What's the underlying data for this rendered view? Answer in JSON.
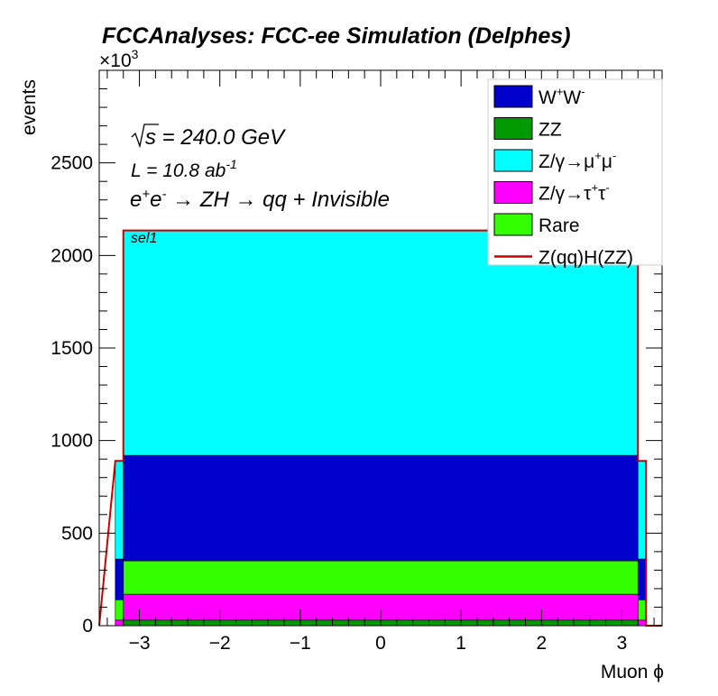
{
  "chart_data": {
    "type": "bar",
    "stacked": true,
    "title": "FCCAnalyses: FCC-ee Simulation (Delphes)",
    "ylabel": "events",
    "xlabel": "Muon ϕ",
    "y_multiplier": "×10",
    "y_multiplier_exp": "3",
    "xlim": [
      -3.5,
      3.5
    ],
    "ylim": [
      0,
      3000
    ],
    "x_ticks": [
      "−3",
      "−2",
      "−1",
      "0",
      "1",
      "2",
      "3"
    ],
    "x_tick_values": [
      -3,
      -2,
      -1,
      0,
      1,
      2,
      3
    ],
    "y_ticks": [
      "0",
      "500",
      "1000",
      "1500",
      "2000",
      "2500"
    ],
    "y_tick_values": [
      0,
      500,
      1000,
      1500,
      2000,
      2500
    ],
    "bins": [
      "[-3.3,-3.2]",
      "[-3.2,3.2]",
      "[3.2,3.3]"
    ],
    "bin_edges": [
      -3.3,
      -3.2,
      3.2,
      3.3
    ],
    "series": [
      {
        "name": "ZZ",
        "sup": "",
        "color": "#009900",
        "values": [
          0,
          30,
          0
        ]
      },
      {
        "name": "Z/γ→τ",
        "sup": "+",
        "name2": "τ",
        "sup2": "-",
        "color": "#ff00ff",
        "values": [
          30,
          140,
          30
        ]
      },
      {
        "name": "Rare",
        "sup": "",
        "color": "#33ff00",
        "values": [
          110,
          180,
          110
        ]
      },
      {
        "name": "W",
        "sup": "+",
        "name2": "W",
        "sup2": "-",
        "color": "#0000cc",
        "values": [
          220,
          570,
          220
        ]
      },
      {
        "name": "Z/γ→μ",
        "sup": "+",
        "name2": "μ",
        "sup2": "-",
        "color": "#00ffff",
        "values": [
          530,
          1215,
          530
        ]
      }
    ],
    "signal": {
      "name": "Z(qq)H(ZZ)",
      "color": "#cc0000",
      "values": [
        890,
        2135,
        890
      ]
    },
    "annotations": {
      "sqrt_s": "s = 240.0 GeV",
      "lumi": "L = 10.8 ab",
      "lumi_exp": "-1",
      "process": "e",
      "process_rest": "ZH",
      "process_final": "qq + Invisible",
      "selection": "sel1"
    }
  }
}
